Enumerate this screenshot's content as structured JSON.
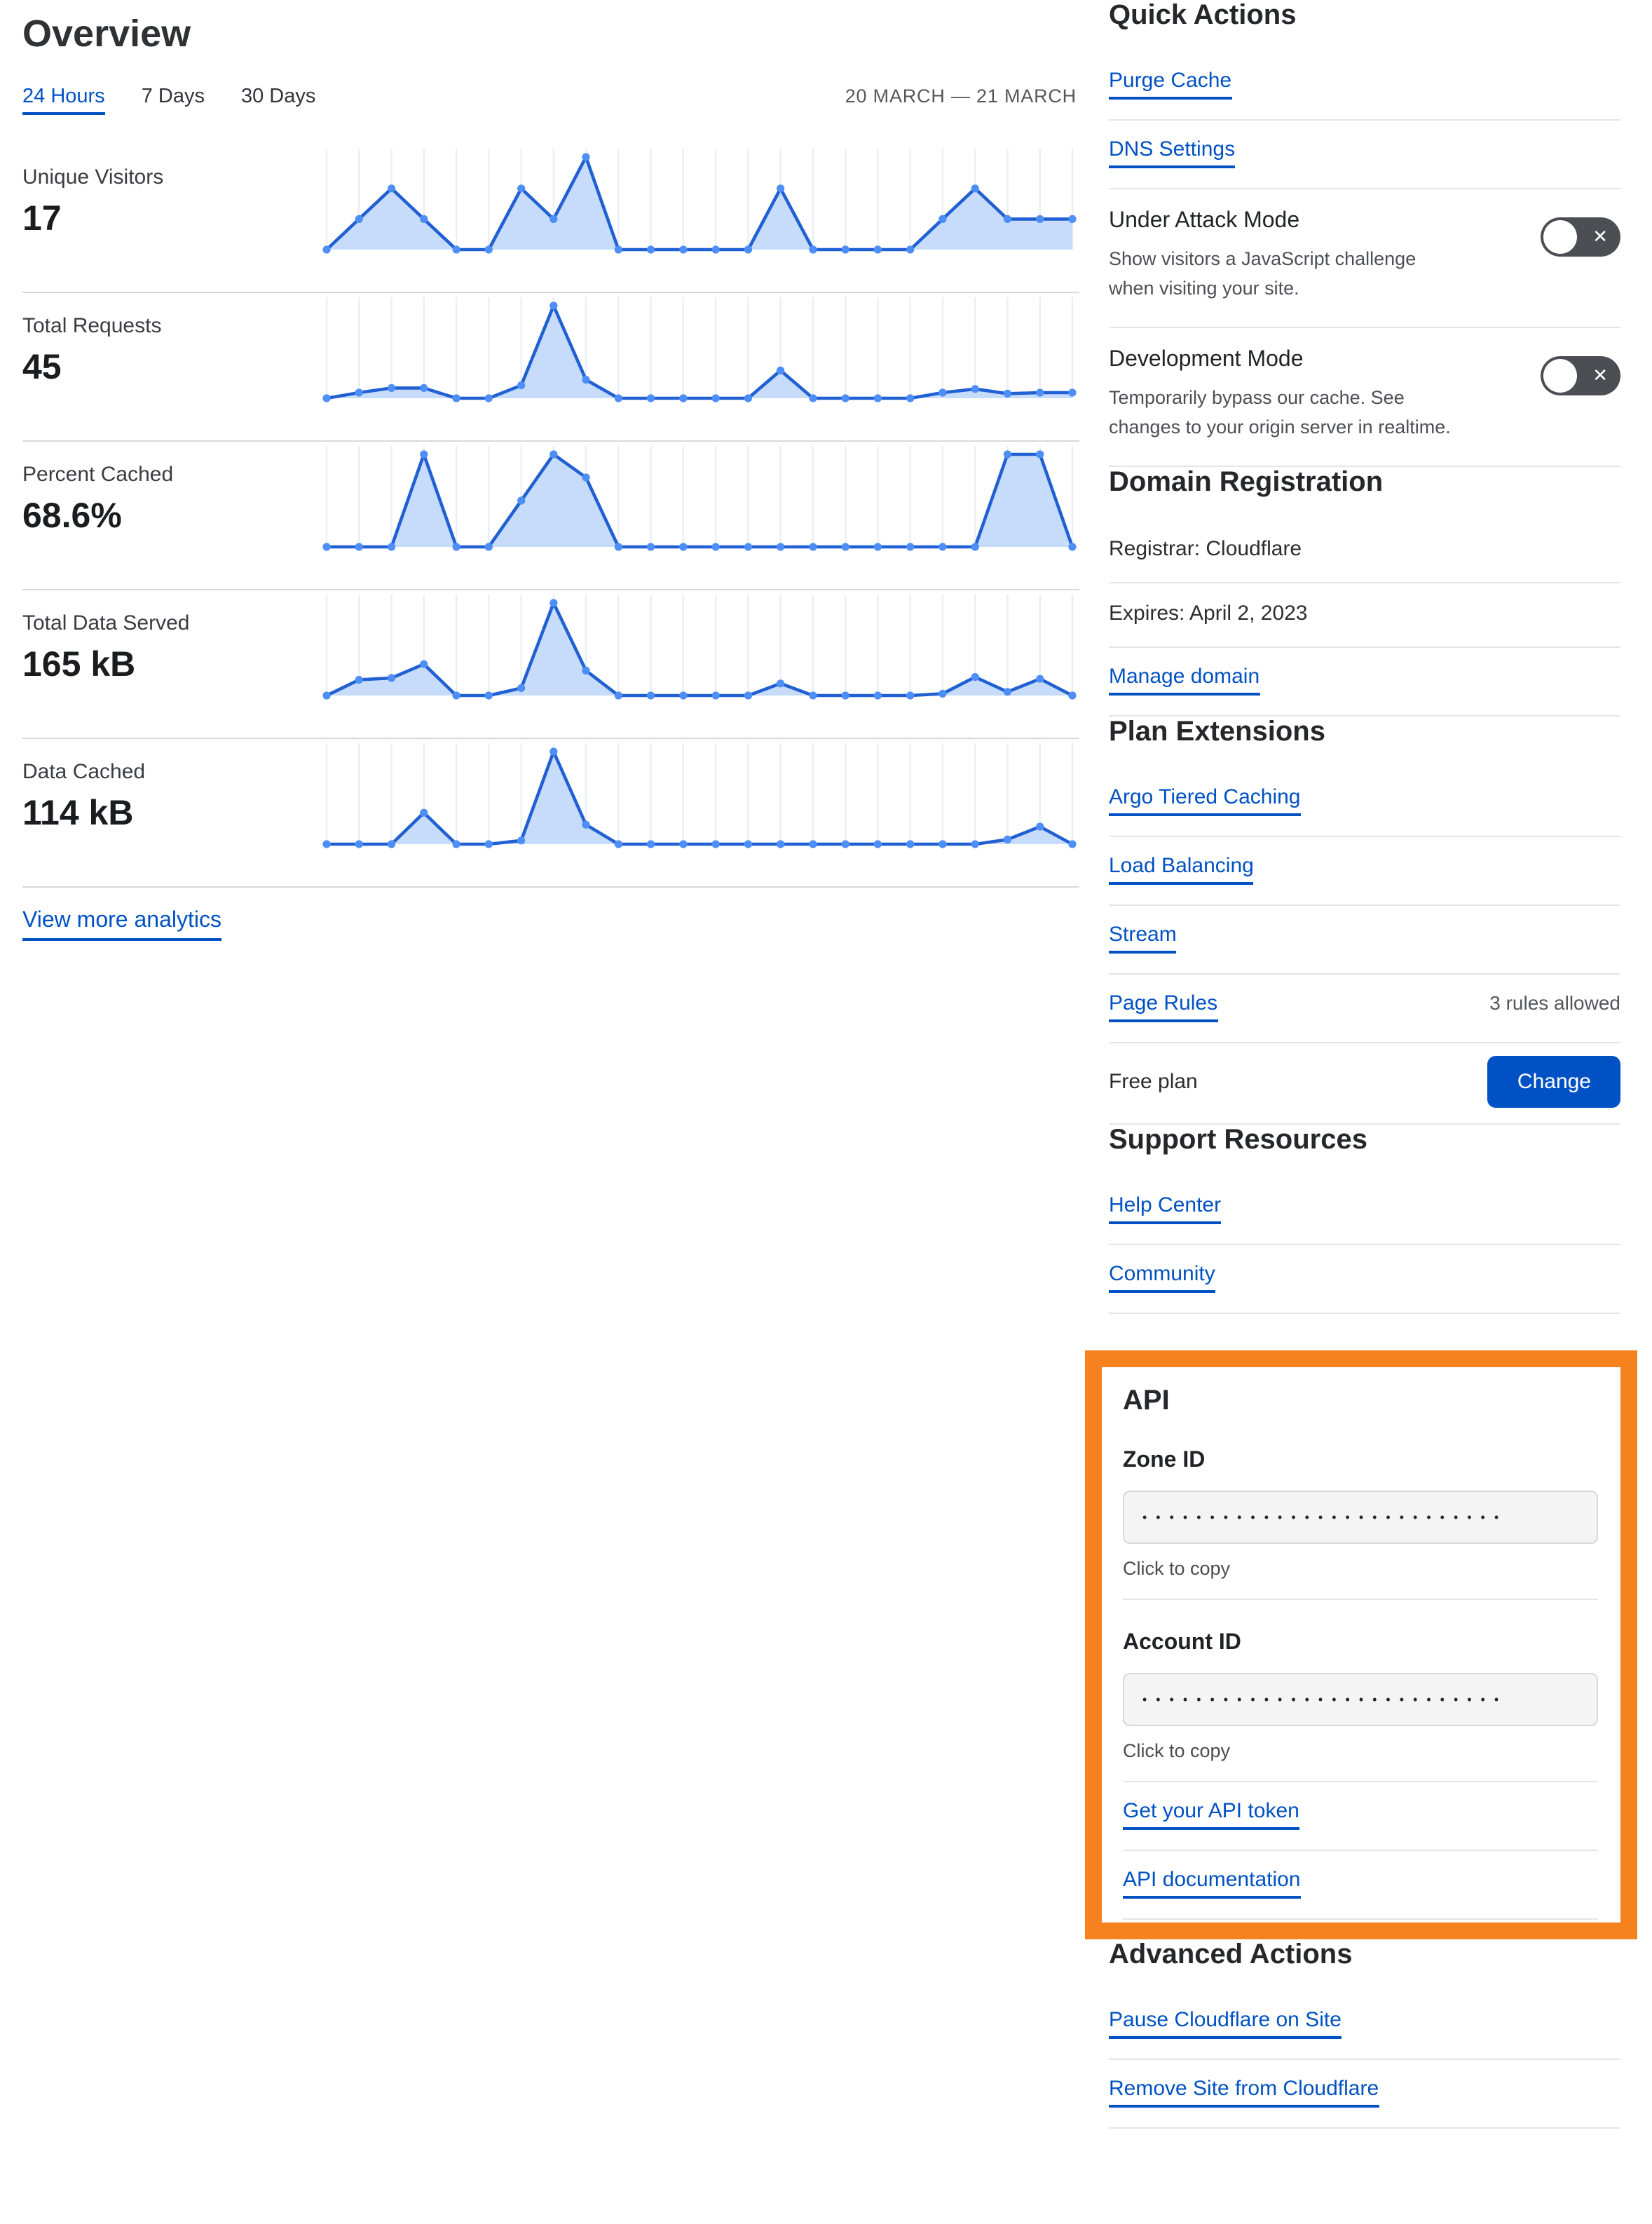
{
  "page": {
    "title": "Overview"
  },
  "tabs": {
    "items": [
      {
        "label": "24 Hours",
        "active": true
      },
      {
        "label": "7 Days",
        "active": false
      },
      {
        "label": "30 Days",
        "active": false
      }
    ],
    "date_range": "20 MARCH — 21 MARCH"
  },
  "view_more_label": "View more analytics",
  "quick_actions": {
    "heading": "Quick Actions",
    "links": [
      "Purge Cache",
      "DNS Settings"
    ],
    "toggles": [
      {
        "title": "Under Attack Mode",
        "description": "Show visitors a JavaScript challenge when visiting your site.",
        "state": "off"
      },
      {
        "title": "Development Mode",
        "description": "Temporarily bypass our cache. See changes to your origin server in realtime.",
        "state": "off"
      }
    ]
  },
  "domain_registration": {
    "heading": "Domain Registration",
    "registrar": "Registrar: Cloudflare",
    "expires": "Expires: April 2, 2023",
    "manage_link": "Manage domain"
  },
  "plan_extensions": {
    "heading": "Plan Extensions",
    "links": [
      "Argo Tiered Caching",
      "Load Balancing",
      "Stream",
      "Page Rules"
    ],
    "page_rules_note": "3 rules allowed",
    "plan_label": "Free plan",
    "change_button": "Change"
  },
  "support_resources": {
    "heading": "Support Resources",
    "links": [
      "Help Center",
      "Community"
    ]
  },
  "api": {
    "heading": "API",
    "zone_id_label": "Zone ID",
    "account_id_label": "Account ID",
    "masked_value": "•••••••••••••••••••••••••••",
    "click_to_copy": "Click to copy",
    "token_link": "Get your API token",
    "docs_link": "API documentation",
    "highlight_color": "#F6821F"
  },
  "advanced_actions": {
    "heading": "Advanced Actions",
    "links": [
      "Pause Cloudflare on Site",
      "Remove Site from Cloudflare"
    ]
  },
  "chart_data": {
    "type": "area",
    "x_axis": "24 hourly points, 20 March — 21 March",
    "grid": "vertical gridlines only, no axis labels",
    "values_normalized_0_to_1": true,
    "colors": {
      "line": "#2160d3",
      "dot": "#4e8ef7",
      "fill": "#c7dcfa",
      "grid": "#e9eef9"
    },
    "sparklines": {
      "unique_visitors": {
        "label": "Unique Visitors",
        "total": "17",
        "values": [
          0,
          0.33,
          0.66,
          0.33,
          0,
          0,
          0.66,
          0.33,
          1,
          0,
          0,
          0,
          0,
          0,
          0.66,
          0,
          0,
          0,
          0,
          0.33,
          0.66,
          0.33,
          0.33,
          0.33
        ]
      },
      "total_requests": {
        "label": "Total Requests",
        "total": "45",
        "values": [
          0,
          0.06,
          0.11,
          0.11,
          0,
          0,
          0.14,
          1,
          0.2,
          0,
          0,
          0,
          0,
          0,
          0.3,
          0,
          0,
          0,
          0,
          0.06,
          0.1,
          0.05,
          0.06,
          0.06
        ]
      },
      "percent_cached": {
        "label": "Percent Cached",
        "total": "68.6%",
        "values": [
          0,
          0,
          0,
          1,
          0,
          0,
          0.5,
          1,
          0.75,
          0,
          0,
          0,
          0,
          0,
          0,
          0,
          0,
          0,
          0,
          0,
          0,
          1,
          1,
          0
        ]
      },
      "total_data_served": {
        "label": "Total Data Served",
        "total": "165 kB",
        "values": [
          0,
          0.17,
          0.19,
          0.34,
          0,
          0,
          0.08,
          1,
          0.27,
          0,
          0,
          0,
          0,
          0,
          0.13,
          0,
          0,
          0,
          0,
          0.02,
          0.2,
          0.04,
          0.18,
          0
        ]
      },
      "data_cached": {
        "label": "Data Cached",
        "total": "114 kB",
        "values": [
          0,
          0,
          0,
          0.34,
          0,
          0,
          0.04,
          1,
          0.21,
          0,
          0,
          0,
          0,
          0,
          0,
          0,
          0,
          0,
          0,
          0,
          0,
          0.05,
          0.19,
          0
        ]
      }
    }
  }
}
